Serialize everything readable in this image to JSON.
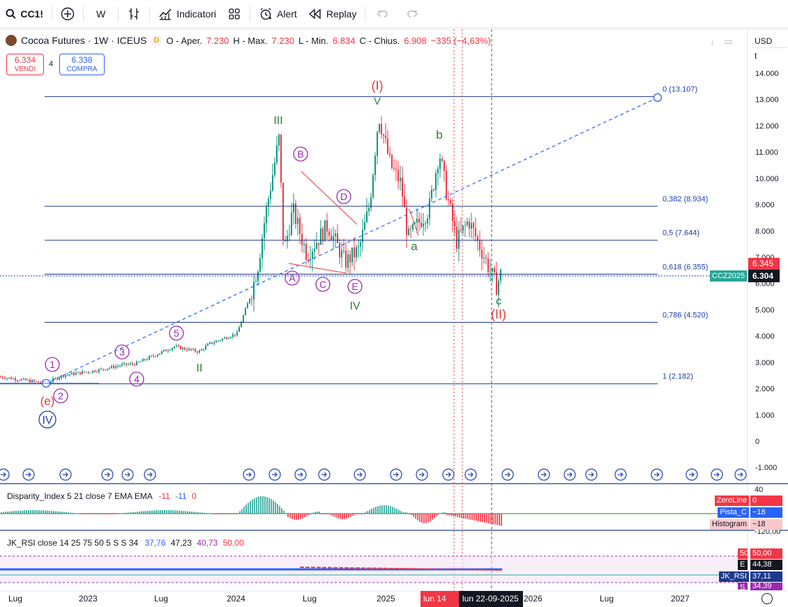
{
  "toolbar": {
    "symbol": "CC1!",
    "interval": "W",
    "indicators_label": "Indicatori",
    "alert_label": "Alert",
    "replay_label": "Replay"
  },
  "legend": {
    "title": "Cocoa Futures · 1W · ICEUS",
    "d_badge": "D",
    "open": "O - Aper.",
    "open_val": "7.230",
    "high": "H - Max.",
    "high_val": "7.230",
    "low": "L - Min.",
    "low_val": "6.834",
    "close": "C - Chius.",
    "close_val": "6.908",
    "change": "−335 (−4,63%)"
  },
  "trade": {
    "sell_price": "6.334",
    "sell_label": "VENDI",
    "spread": "4",
    "buy_price": "6.338",
    "buy_label": "COMPRA"
  },
  "price_axis": {
    "currency": "USD",
    "unit": "t",
    "ticks": [
      "14.000",
      "13.000",
      "12.000",
      "11.000",
      "10.000",
      "9.000",
      "8.000",
      "7.000",
      "6.000",
      "5.000",
      "4.000",
      "3.000",
      "2.000",
      "1.000",
      "0",
      "-1.000"
    ],
    "last_price": "6.304",
    "last_price_red": "6.345",
    "symbol_tag": "CCZ2025"
  },
  "fib_levels": [
    {
      "label": "0 (13.107)"
    },
    {
      "label": "0,382 (8.934)"
    },
    {
      "label": "0,5 (7.644)"
    },
    {
      "label": "0,618 (6.355)"
    },
    {
      "label": "0,786 (4.520)"
    },
    {
      "label": "1 (2.182)"
    }
  ],
  "waves": {
    "I_red": "(I)",
    "II_red": "(II)",
    "e_red": "(e)",
    "IV_blue": "IV",
    "w1": "1",
    "w2": "2",
    "w3": "3",
    "w4": "4",
    "w5": "5",
    "II_green": "II",
    "III_green": "III",
    "IV_green": "IV",
    "V_green": "V",
    "A": "A",
    "B": "B",
    "C": "C",
    "D": "D",
    "E": "E",
    "a": "a",
    "b": "b",
    "c": "c"
  },
  "disparity": {
    "label": "Disparity_Index 5 21 close 7 EMA EMA",
    "v1": "-11",
    "v2": "-11",
    "v3": "0",
    "axis_top": "40",
    "axis_bottom": "-120,00",
    "zero_tag": "ZeroLine",
    "zero_val": "0",
    "pista_tag": "Pista_C",
    "pista_val": "−18",
    "hist_tag": "Histogram",
    "hist_val": "−18"
  },
  "rsi": {
    "label": "JK_RSI close 14 25 75 50 5 S S 34",
    "v1": "37,76",
    "v2": "47,23",
    "v3": "40,73",
    "v4": "50,00",
    "tag_50": "50",
    "val_50": "50,00",
    "tag_e": "E",
    "val_e": "44,38",
    "tag_rsi": "JK_RSI",
    "val_rsi": "37,11",
    "tag_s": "S",
    "val_s": "34,39"
  },
  "xaxis": {
    "labels": [
      "Lug",
      "2023",
      "Lug",
      "2024",
      "Lug",
      "2025",
      "2026",
      "Lug",
      "2027"
    ],
    "cursor_red": "lun 14",
    "cursor_dark": "lun 22-09-2025"
  },
  "colors": {
    "up": "#089981",
    "down": "#f23645",
    "fib": "#1e3a8a",
    "wave_green": "#2e7d32",
    "wave_purple": "#9c27b0",
    "wave_red": "#e53935",
    "wave_blue": "#1e40af"
  }
}
